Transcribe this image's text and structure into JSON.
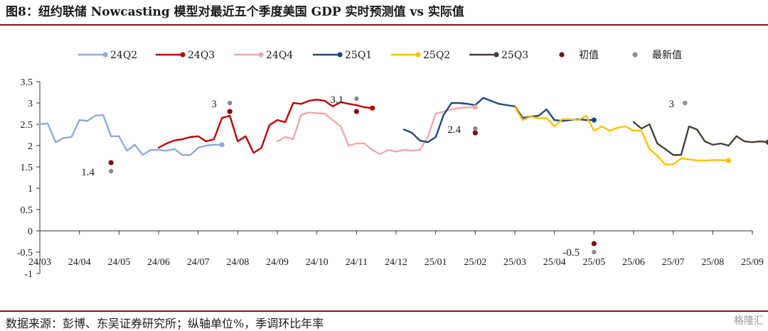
{
  "figure": {
    "title": "图8：纽约联储 Nowcasting 模型对最近五个季度美国 GDP 实时预测值 vs 实际值",
    "source": "数据来源：彭博、东吴证券研究所；纵轴单位%，季调环比年率",
    "watermark": "格隆汇"
  },
  "chart_data": {
    "type": "line",
    "ylim": [
      -1,
      3.5
    ],
    "yticks": [
      "3.5",
      "3",
      "2.5",
      "2",
      "1.5",
      "1",
      "0.5",
      "0",
      "-0.5",
      "-1"
    ],
    "xticks": [
      "24/03",
      "24/04",
      "24/05",
      "24/06",
      "24/07",
      "24/08",
      "24/09",
      "24/10",
      "24/11",
      "24/12",
      "25/01",
      "25/02",
      "25/03",
      "25/04",
      "25/05",
      "25/06",
      "25/07",
      "25/08",
      "25/09"
    ],
    "legend": [
      "24Q2",
      "24Q3",
      "24Q4",
      "25Q1",
      "25Q2",
      "25Q3",
      "初值",
      "最新值"
    ],
    "legend_position": "top",
    "grid": false,
    "series": [
      {
        "name": "24Q2",
        "color": "#8faadc",
        "x": [
          0.0,
          0.2,
          0.4,
          0.6,
          0.8,
          1.0,
          1.2,
          1.4,
          1.6,
          1.8,
          2.0,
          2.2,
          2.4,
          2.6,
          2.8,
          3.0,
          3.2,
          3.4,
          3.6,
          3.8,
          4.0,
          4.2,
          4.4,
          4.6
        ],
        "y": [
          2.5,
          2.52,
          2.08,
          2.18,
          2.2,
          2.6,
          2.58,
          2.7,
          2.72,
          2.22,
          2.22,
          1.88,
          2.02,
          1.78,
          1.9,
          1.9,
          1.88,
          1.92,
          1.78,
          1.78,
          1.95,
          2.0,
          2.02,
          2.02
        ]
      },
      {
        "name": "24Q3",
        "color": "#c00000",
        "x": [
          3.0,
          3.2,
          3.4,
          3.6,
          3.8,
          4.0,
          4.2,
          4.4,
          4.6,
          4.8,
          5.0,
          5.2,
          5.4,
          5.6,
          5.8,
          6.0,
          6.2,
          6.4,
          6.6,
          6.8,
          7.0,
          7.2,
          7.4,
          7.6,
          7.8,
          8.0,
          8.2,
          8.4
        ],
        "y": [
          1.95,
          2.05,
          2.12,
          2.15,
          2.2,
          2.22,
          2.1,
          2.15,
          2.65,
          2.7,
          2.1,
          2.22,
          1.83,
          1.95,
          2.48,
          2.6,
          2.55,
          3.0,
          2.98,
          3.05,
          3.08,
          3.05,
          2.92,
          3.02,
          2.98,
          2.95,
          2.9,
          2.88
        ]
      },
      {
        "name": "24Q4",
        "color": "#f4a6a6",
        "x": [
          6.0,
          6.2,
          6.4,
          6.6,
          6.8,
          7.0,
          7.2,
          7.4,
          7.6,
          7.8,
          8.0,
          8.2,
          8.4,
          8.6,
          8.8,
          9.0,
          9.2,
          9.4,
          9.6,
          9.8,
          10.0,
          10.2,
          10.4,
          10.6,
          10.8,
          11.0
        ],
        "y": [
          2.1,
          2.2,
          2.15,
          2.72,
          2.78,
          2.76,
          2.75,
          2.6,
          2.45,
          2.0,
          2.05,
          2.05,
          1.9,
          1.8,
          1.9,
          1.86,
          1.9,
          1.88,
          1.9,
          2.2,
          2.75,
          2.8,
          2.85,
          2.88,
          2.9,
          2.9
        ]
      },
      {
        "name": "25Q1",
        "color": "#1f497d",
        "x": [
          9.2,
          9.4,
          9.6,
          9.8,
          10.0,
          10.2,
          10.4,
          10.6,
          10.8,
          11.0,
          11.2,
          11.4,
          11.6,
          11.8,
          12.0,
          12.2,
          12.4,
          12.6,
          12.8,
          13.0,
          13.2,
          13.4,
          13.6,
          13.8,
          14.0
        ],
        "y": [
          2.38,
          2.3,
          2.12,
          2.08,
          2.2,
          2.72,
          3.0,
          3.0,
          2.98,
          2.95,
          3.12,
          3.05,
          2.98,
          2.95,
          2.92,
          2.65,
          2.68,
          2.7,
          2.85,
          2.6,
          2.58,
          2.6,
          2.62,
          2.6,
          2.6
        ]
      },
      {
        "name": "25Q2",
        "color": "#ffc000",
        "x": [
          12.0,
          12.2,
          12.4,
          12.6,
          12.8,
          13.0,
          13.2,
          13.4,
          13.6,
          13.8,
          14.0,
          14.2,
          14.4,
          14.6,
          14.8,
          15.0,
          15.2,
          15.4,
          15.6,
          15.8,
          16.0,
          16.2,
          16.4,
          16.6,
          16.8,
          17.0,
          17.2,
          17.4
        ],
        "y": [
          2.9,
          2.6,
          2.68,
          2.64,
          2.65,
          2.45,
          2.62,
          2.62,
          2.6,
          2.7,
          2.35,
          2.45,
          2.35,
          2.42,
          2.45,
          2.35,
          2.35,
          1.92,
          1.76,
          1.56,
          1.56,
          1.7,
          1.68,
          1.65,
          1.65,
          1.66,
          1.66,
          1.65
        ]
      },
      {
        "name": "25Q3",
        "color": "#4a3f35",
        "x": [
          15.0,
          15.2,
          15.4,
          15.6,
          15.8,
          16.0,
          16.2,
          16.4,
          16.6,
          16.8,
          17.0,
          17.2,
          17.4,
          17.6,
          17.8,
          18.0,
          18.2,
          18.4
        ],
        "y": [
          2.55,
          2.4,
          2.5,
          2.05,
          1.92,
          1.78,
          1.78,
          2.45,
          2.38,
          2.1,
          2.02,
          2.05,
          2.0,
          2.22,
          2.1,
          2.08,
          2.1,
          2.08
        ]
      }
    ],
    "initial_points": {
      "name": "初值",
      "color": "#7b0c0c",
      "x": [
        1.8,
        4.8,
        8.0,
        11.0,
        14.0
      ],
      "y": [
        1.6,
        2.8,
        2.8,
        2.3,
        -0.3
      ]
    },
    "latest_points": {
      "name": "最新值",
      "color": "#8c8c8c",
      "x": [
        1.8,
        4.8,
        8.0,
        11.0,
        14.0,
        16.3
      ],
      "y": [
        1.4,
        3.0,
        3.1,
        2.4,
        -0.5,
        3.0
      ]
    },
    "annotations": [
      {
        "text": "1.4",
        "x": 1.8,
        "y": 1.4
      },
      {
        "text": "3",
        "x": 4.8,
        "y": 3.0
      },
      {
        "text": "3.1",
        "x": 8.0,
        "y": 3.1
      },
      {
        "text": "2.4",
        "x": 11.0,
        "y": 2.4
      },
      {
        "text": "-0.5",
        "x": 14.0,
        "y": -0.5
      },
      {
        "text": "3",
        "x": 16.3,
        "y": 3.0
      }
    ]
  }
}
